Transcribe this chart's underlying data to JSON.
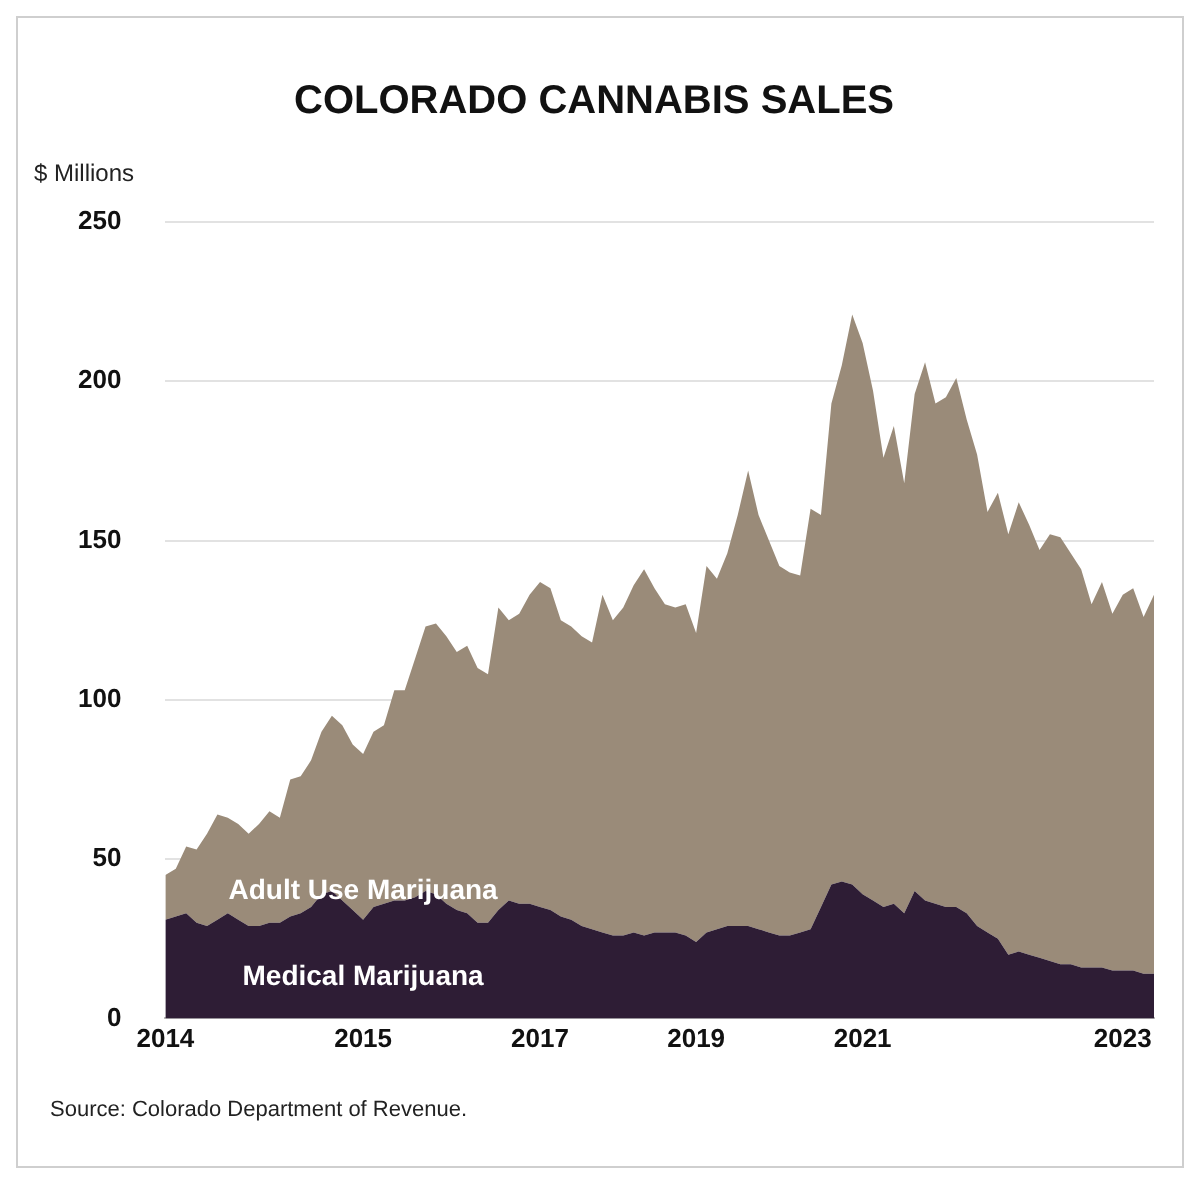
{
  "chart_data": {
    "type": "area",
    "title": "COLORADO CANNABIS SALES",
    "ylabel": "$ Millions",
    "stacked": true,
    "legend": false,
    "grid": "y",
    "categories": [
      "2014",
      null,
      null,
      null,
      null,
      null,
      null,
      null,
      null,
      null,
      null,
      null,
      null,
      null,
      null,
      null,
      null,
      null,
      null,
      "2015",
      null,
      null,
      null,
      null,
      null,
      null,
      null,
      null,
      null,
      null,
      null,
      null,
      null,
      null,
      null,
      null,
      "2017",
      null,
      null,
      null,
      null,
      null,
      null,
      null,
      null,
      null,
      null,
      null,
      null,
      null,
      null,
      "2019",
      null,
      null,
      null,
      null,
      null,
      null,
      null,
      null,
      null,
      null,
      null,
      null,
      null,
      null,
      null,
      "2021",
      null,
      null,
      null,
      null,
      null,
      null,
      null,
      null,
      null,
      null,
      null,
      null,
      null,
      null,
      null,
      null,
      null,
      null,
      null,
      null,
      null,
      null,
      null,
      null,
      "2023",
      null,
      null,
      null
    ],
    "ylim": [
      0,
      250
    ],
    "yticks": [
      0,
      50,
      100,
      150,
      200,
      250
    ],
    "series": [
      {
        "name": "Medical Marijuana",
        "color": "#2e1d35",
        "values": [
          31,
          32,
          33,
          30,
          29,
          31,
          33,
          31,
          29,
          29,
          30,
          30,
          32,
          33,
          35,
          39,
          40,
          37,
          34,
          31,
          35,
          36,
          37,
          37,
          38,
          40,
          39,
          36,
          34,
          33,
          30,
          30,
          34,
          37,
          36,
          36,
          35,
          34,
          32,
          31,
          29,
          28,
          27,
          26,
          26,
          27,
          26,
          27,
          27,
          27,
          26,
          24,
          27,
          28,
          29,
          29,
          29,
          28,
          27,
          26,
          26,
          27,
          28,
          35,
          42,
          43,
          42,
          39,
          37,
          35,
          36,
          33,
          40,
          37,
          36,
          35,
          35,
          33,
          29,
          27,
          25,
          20,
          21,
          20,
          19,
          18,
          17,
          17,
          16,
          16,
          16,
          15,
          15,
          15,
          14,
          14
        ]
      },
      {
        "name": "Adult Use Marijuana",
        "color": "#9a8b79",
        "values": [
          14,
          15,
          21,
          23,
          29,
          33,
          30,
          30,
          29,
          32,
          35,
          33,
          43,
          43,
          46,
          51,
          55,
          55,
          52,
          52,
          55,
          56,
          66,
          66,
          75,
          83,
          85,
          84,
          81,
          84,
          80,
          78,
          95,
          88,
          91,
          97,
          102,
          101,
          93,
          92,
          91,
          90,
          106,
          99,
          103,
          109,
          115,
          108,
          103,
          102,
          104,
          97,
          115,
          110,
          117,
          129,
          143,
          130,
          123,
          116,
          114,
          112,
          132,
          123,
          151,
          162,
          179,
          173,
          160,
          141,
          150,
          135,
          156,
          169,
          157,
          160,
          166,
          155,
          148,
          132,
          140,
          132,
          141,
          135,
          128,
          134,
          134,
          129,
          125,
          114,
          121,
          112,
          118,
          120,
          112,
          119
        ]
      }
    ],
    "annotations": [
      "Source: Colorado Department of Revenue."
    ]
  }
}
